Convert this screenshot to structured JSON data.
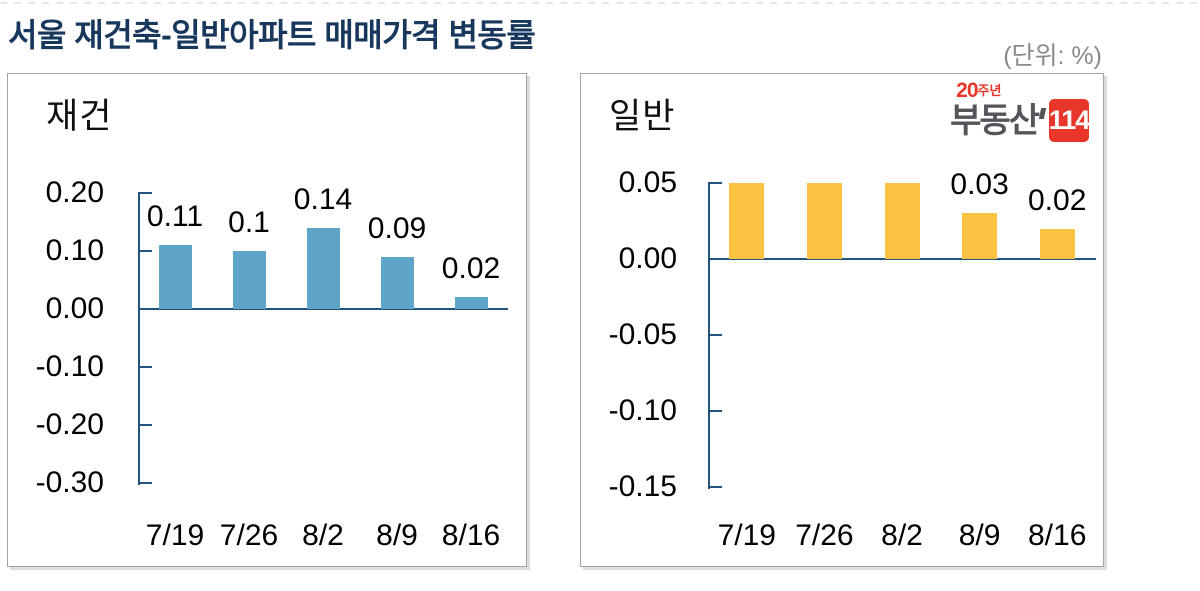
{
  "header": {
    "title": "서울 재건축-일반아파트 매매가격 변동률",
    "unit_label": "(단위: %)"
  },
  "logo": {
    "anniversary_number": "20",
    "anniversary_suffix": "주년",
    "brand": "부동산",
    "badge": "114",
    "brand_color": "#54555A",
    "accent_color": "#E8362A"
  },
  "chart_data": [
    {
      "type": "bar",
      "title": "재건",
      "categories": [
        "7/19",
        "7/26",
        "8/2",
        "8/9",
        "8/16"
      ],
      "values": [
        0.11,
        0.1,
        0.14,
        0.09,
        0.02
      ],
      "bar_labels": [
        "0.11",
        "0.1",
        "0.14",
        "0.09",
        "0.02"
      ],
      "ytick_values": [
        0.2,
        0.1,
        0.0,
        -0.1,
        -0.2,
        -0.3
      ],
      "ytick_labels": [
        "0.20",
        "0.10",
        "0.00",
        "-0.10",
        "-0.20",
        "-0.30"
      ],
      "ylim": [
        -0.3,
        0.2
      ],
      "xlabel": "",
      "ylabel": "",
      "grid": false,
      "legend_position": "none",
      "bar_color": "#5FA4C9",
      "axis_color": "#24527E"
    },
    {
      "type": "bar",
      "title": "일반",
      "categories": [
        "7/19",
        "7/26",
        "8/2",
        "8/9",
        "8/16"
      ],
      "values": [
        0.05,
        0.05,
        0.05,
        0.03,
        0.02
      ],
      "bar_labels": [
        "",
        "",
        "",
        "0.03",
        "0.02"
      ],
      "ytick_values": [
        0.05,
        0.0,
        -0.05,
        -0.1,
        -0.15
      ],
      "ytick_labels": [
        "0.05",
        "0.00",
        "-0.05",
        "-0.10",
        "-0.15"
      ],
      "ylim": [
        -0.15,
        0.05
      ],
      "xlabel": "",
      "ylabel": "",
      "grid": false,
      "legend_position": "none",
      "bar_color": "#FCC242",
      "axis_color": "#24527E"
    }
  ]
}
